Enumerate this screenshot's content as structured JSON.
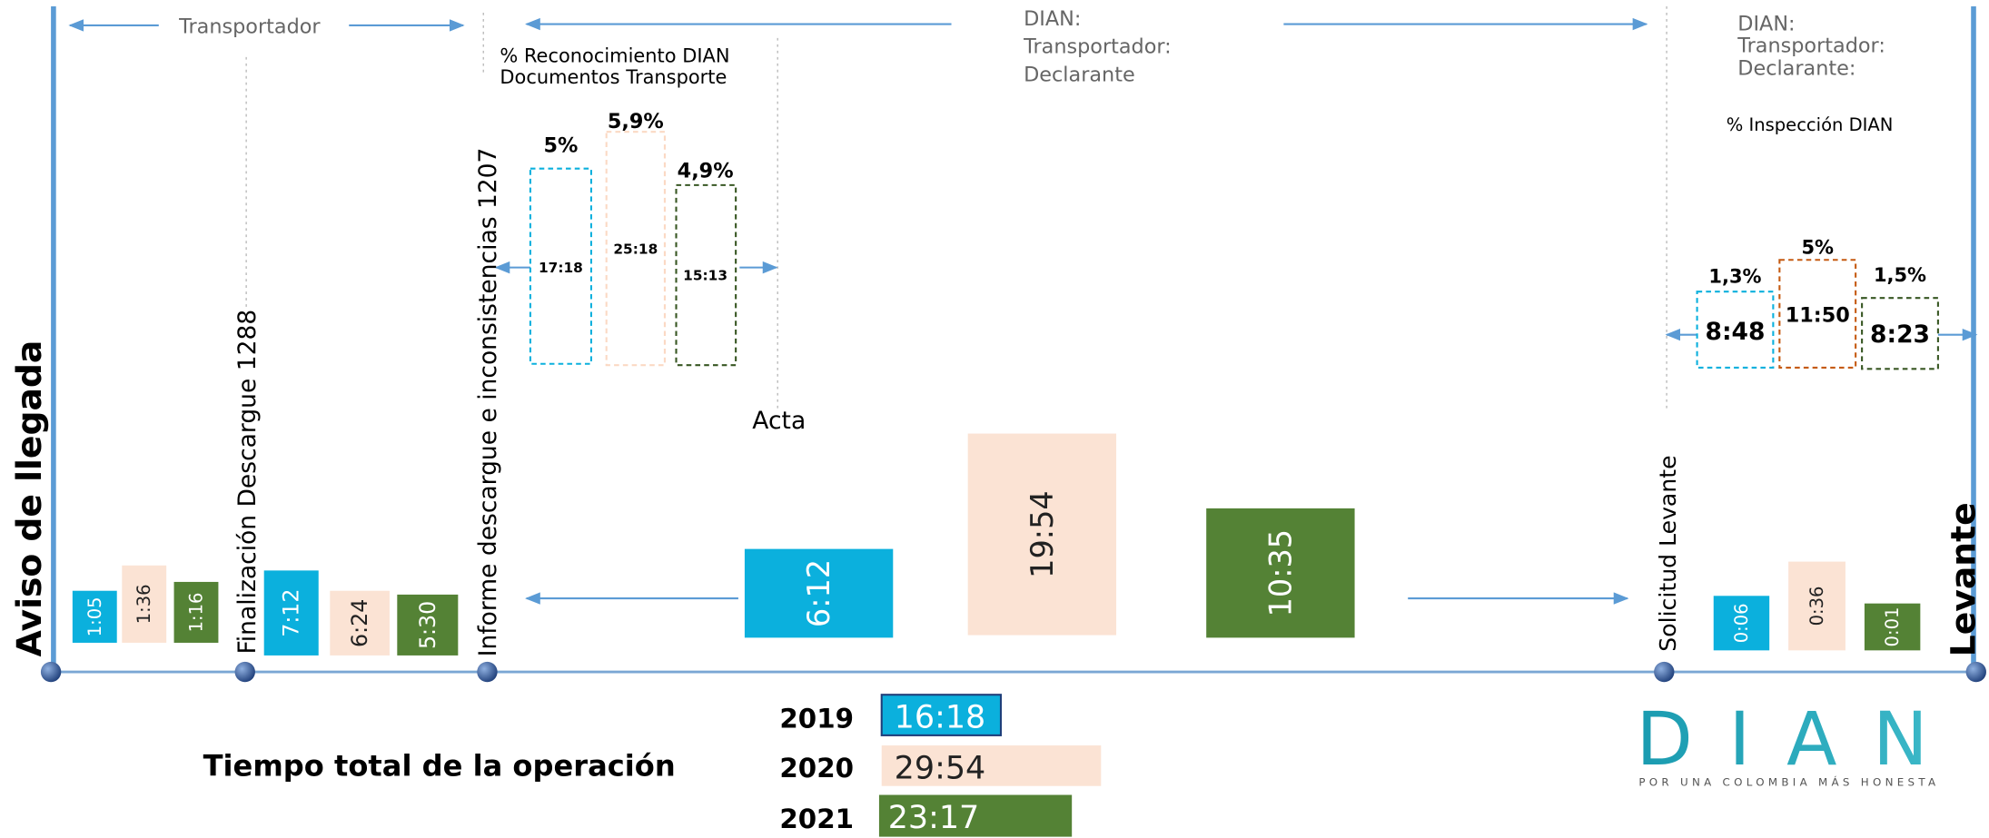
{
  "milestones": {
    "arrival": "Aviso de llegada",
    "unloading": "Finalización Descargue 1288",
    "report": "Informe descargue e inconsistencias 1207",
    "acta": "Acta",
    "request": "Solicitud Levante",
    "release": "Levante"
  },
  "responsibles": {
    "segment1": "Transportador",
    "segment2": [
      "DIAN:",
      "Transportador:",
      "Declarante"
    ],
    "segment3": [
      "DIAN:",
      "Transportador:",
      "Declarante:"
    ]
  },
  "recognition": {
    "title": [
      "% Reconocimiento DIAN",
      "Documentos Transporte"
    ],
    "boxes": [
      {
        "pct": "5%",
        "time": "17:18"
      },
      {
        "pct": "5,9%",
        "time": "25:18"
      },
      {
        "pct": "4,9%",
        "time": "15:13"
      }
    ]
  },
  "inspection": {
    "title": "% Inspección DIAN",
    "boxes": [
      {
        "pct": "1,3%",
        "time": "8:48"
      },
      {
        "pct": "5%",
        "time": "11:50"
      },
      {
        "pct": "1,5%",
        "time": "8:23"
      }
    ]
  },
  "stages": [
    [
      "1:05",
      "1:36",
      "1:16"
    ],
    [
      "7:12",
      "6:24",
      "5:30"
    ],
    [
      "6:12",
      "19:54",
      "10:35"
    ],
    [
      "0:06",
      "0:36",
      "0:01"
    ]
  ],
  "total": {
    "title": "Tiempo total  de la operación",
    "rows": [
      {
        "year": "2019",
        "time": "16:18"
      },
      {
        "year": "2020",
        "time": "29:54"
      },
      {
        "year": "2021",
        "time": "23:17"
      }
    ]
  },
  "logo": {
    "name": "DIAN",
    "tagline": "POR UNA COLOMBIA MÁS HONESTA"
  }
}
